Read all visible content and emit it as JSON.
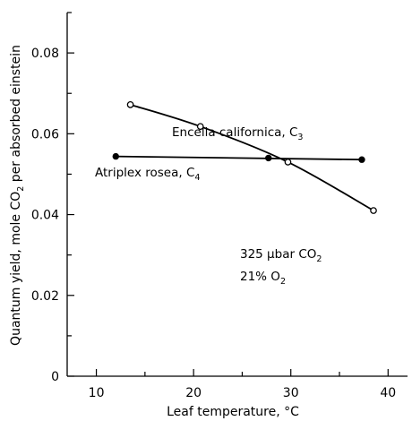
{
  "chart_data": {
    "type": "line",
    "title": "",
    "xlabel": {
      "text": "Leaf temperature, °C"
    },
    "ylabel": {
      "pre": "Quantum yield, mole CO",
      "sub": "2",
      "post": " per absorbed einstein"
    },
    "xlim": [
      7,
      42
    ],
    "ylim": [
      0,
      0.09
    ],
    "xticks": [
      10,
      20,
      30,
      40
    ],
    "xtick_labels": [
      "10",
      "20",
      "30",
      "40"
    ],
    "yticks": [
      0,
      0.02,
      0.04,
      0.06,
      0.08
    ],
    "ytick_labels": [
      "0",
      "0.02",
      "0.04",
      "0.06",
      "0.08"
    ],
    "grid": false,
    "series": [
      {
        "label": {
          "pre": "Encelia californica, C",
          "sub": "3"
        },
        "marker": "open-circle",
        "x": [
          13.5,
          20.7,
          29.7,
          38.5
        ],
        "y": [
          0.0672,
          0.0618,
          0.053,
          0.041
        ]
      },
      {
        "label": {
          "pre": "Atriplex rosea, C",
          "sub": "4"
        },
        "marker": "filled-circle",
        "x": [
          12,
          27.7,
          37.3
        ],
        "y": [
          0.0544,
          0.054,
          0.0536
        ]
      }
    ],
    "annotations": [
      {
        "pre": "325 µbar CO",
        "sub": "2"
      },
      {
        "pre": "21% O",
        "sub": "2"
      }
    ]
  }
}
